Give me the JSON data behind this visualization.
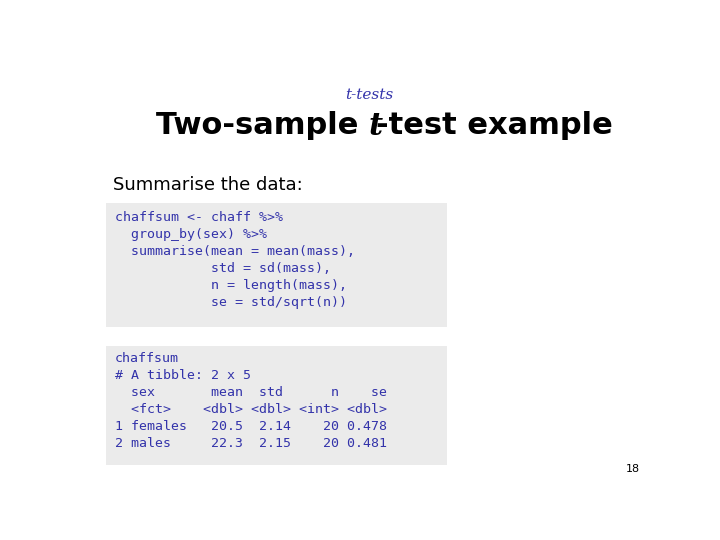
{
  "title_small": "t-tests",
  "subtitle": "Summarise the data:",
  "code_block1": "chaffsum <- chaff %>%\n  group_by(sex) %>%\n  summarise(mean = mean(mass),\n            std = sd(mass),\n            n = length(mass),\n            se = std/sqrt(n))",
  "code_block2": "chaffsum\n# A tibble: 2 x 5\n  sex       mean  std      n    se\n  <fct>    <dbl> <dbl> <int> <dbl>\n1 females   20.5  2.14    20 0.478\n2 males     22.3  2.15    20 0.481",
  "code_color": "#3333aa",
  "bg_color": "#ebebeb",
  "title_small_color": "#3333aa",
  "title_large_color": "#000000",
  "text_color": "#000000",
  "page_number": "18",
  "white_bg": "#ffffff",
  "title_small_fontsize": 11,
  "title_large_fontsize": 22,
  "subtitle_fontsize": 13,
  "code_fontsize": 9.5
}
